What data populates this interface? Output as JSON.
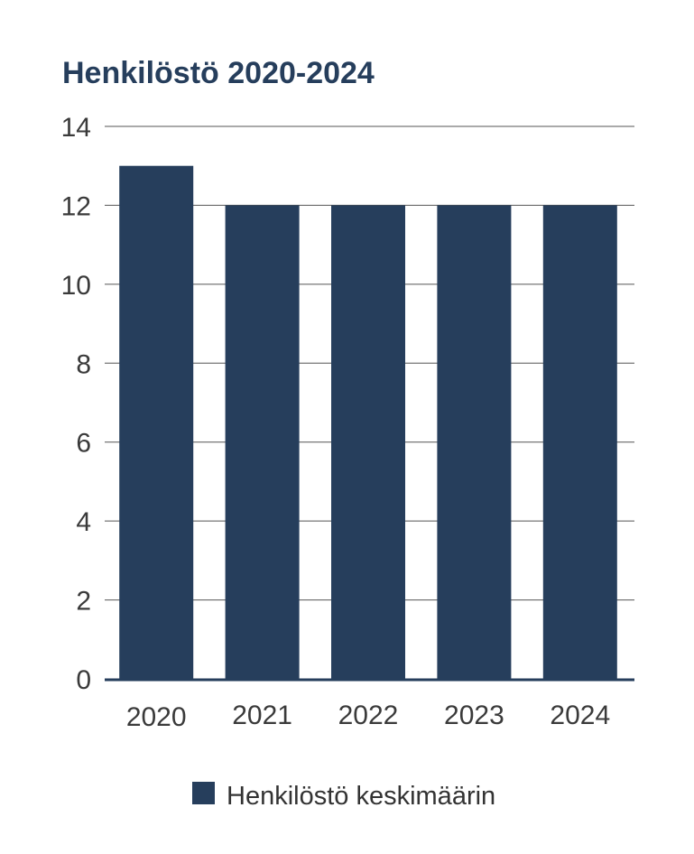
{
  "chart_data": {
    "type": "bar",
    "title": "Henkilöstö 2020-2024",
    "categories": [
      "2020",
      "2021",
      "2022",
      "2023",
      "2024"
    ],
    "series": [
      {
        "name": "Henkilöstö keskimäärin",
        "values": [
          13,
          12,
          12,
          12,
          12
        ]
      }
    ],
    "xlabel": "",
    "ylabel": "",
    "ylim": [
      0,
      14
    ],
    "yticks": [
      "0",
      "2",
      "4",
      "6",
      "8",
      "10",
      "12",
      "14"
    ],
    "grid": true,
    "legend_position": "bottom-center"
  },
  "colors": {
    "bar": "#263e5c",
    "title": "#263e5c",
    "grid": "#555555",
    "axis": "#263e5c"
  }
}
